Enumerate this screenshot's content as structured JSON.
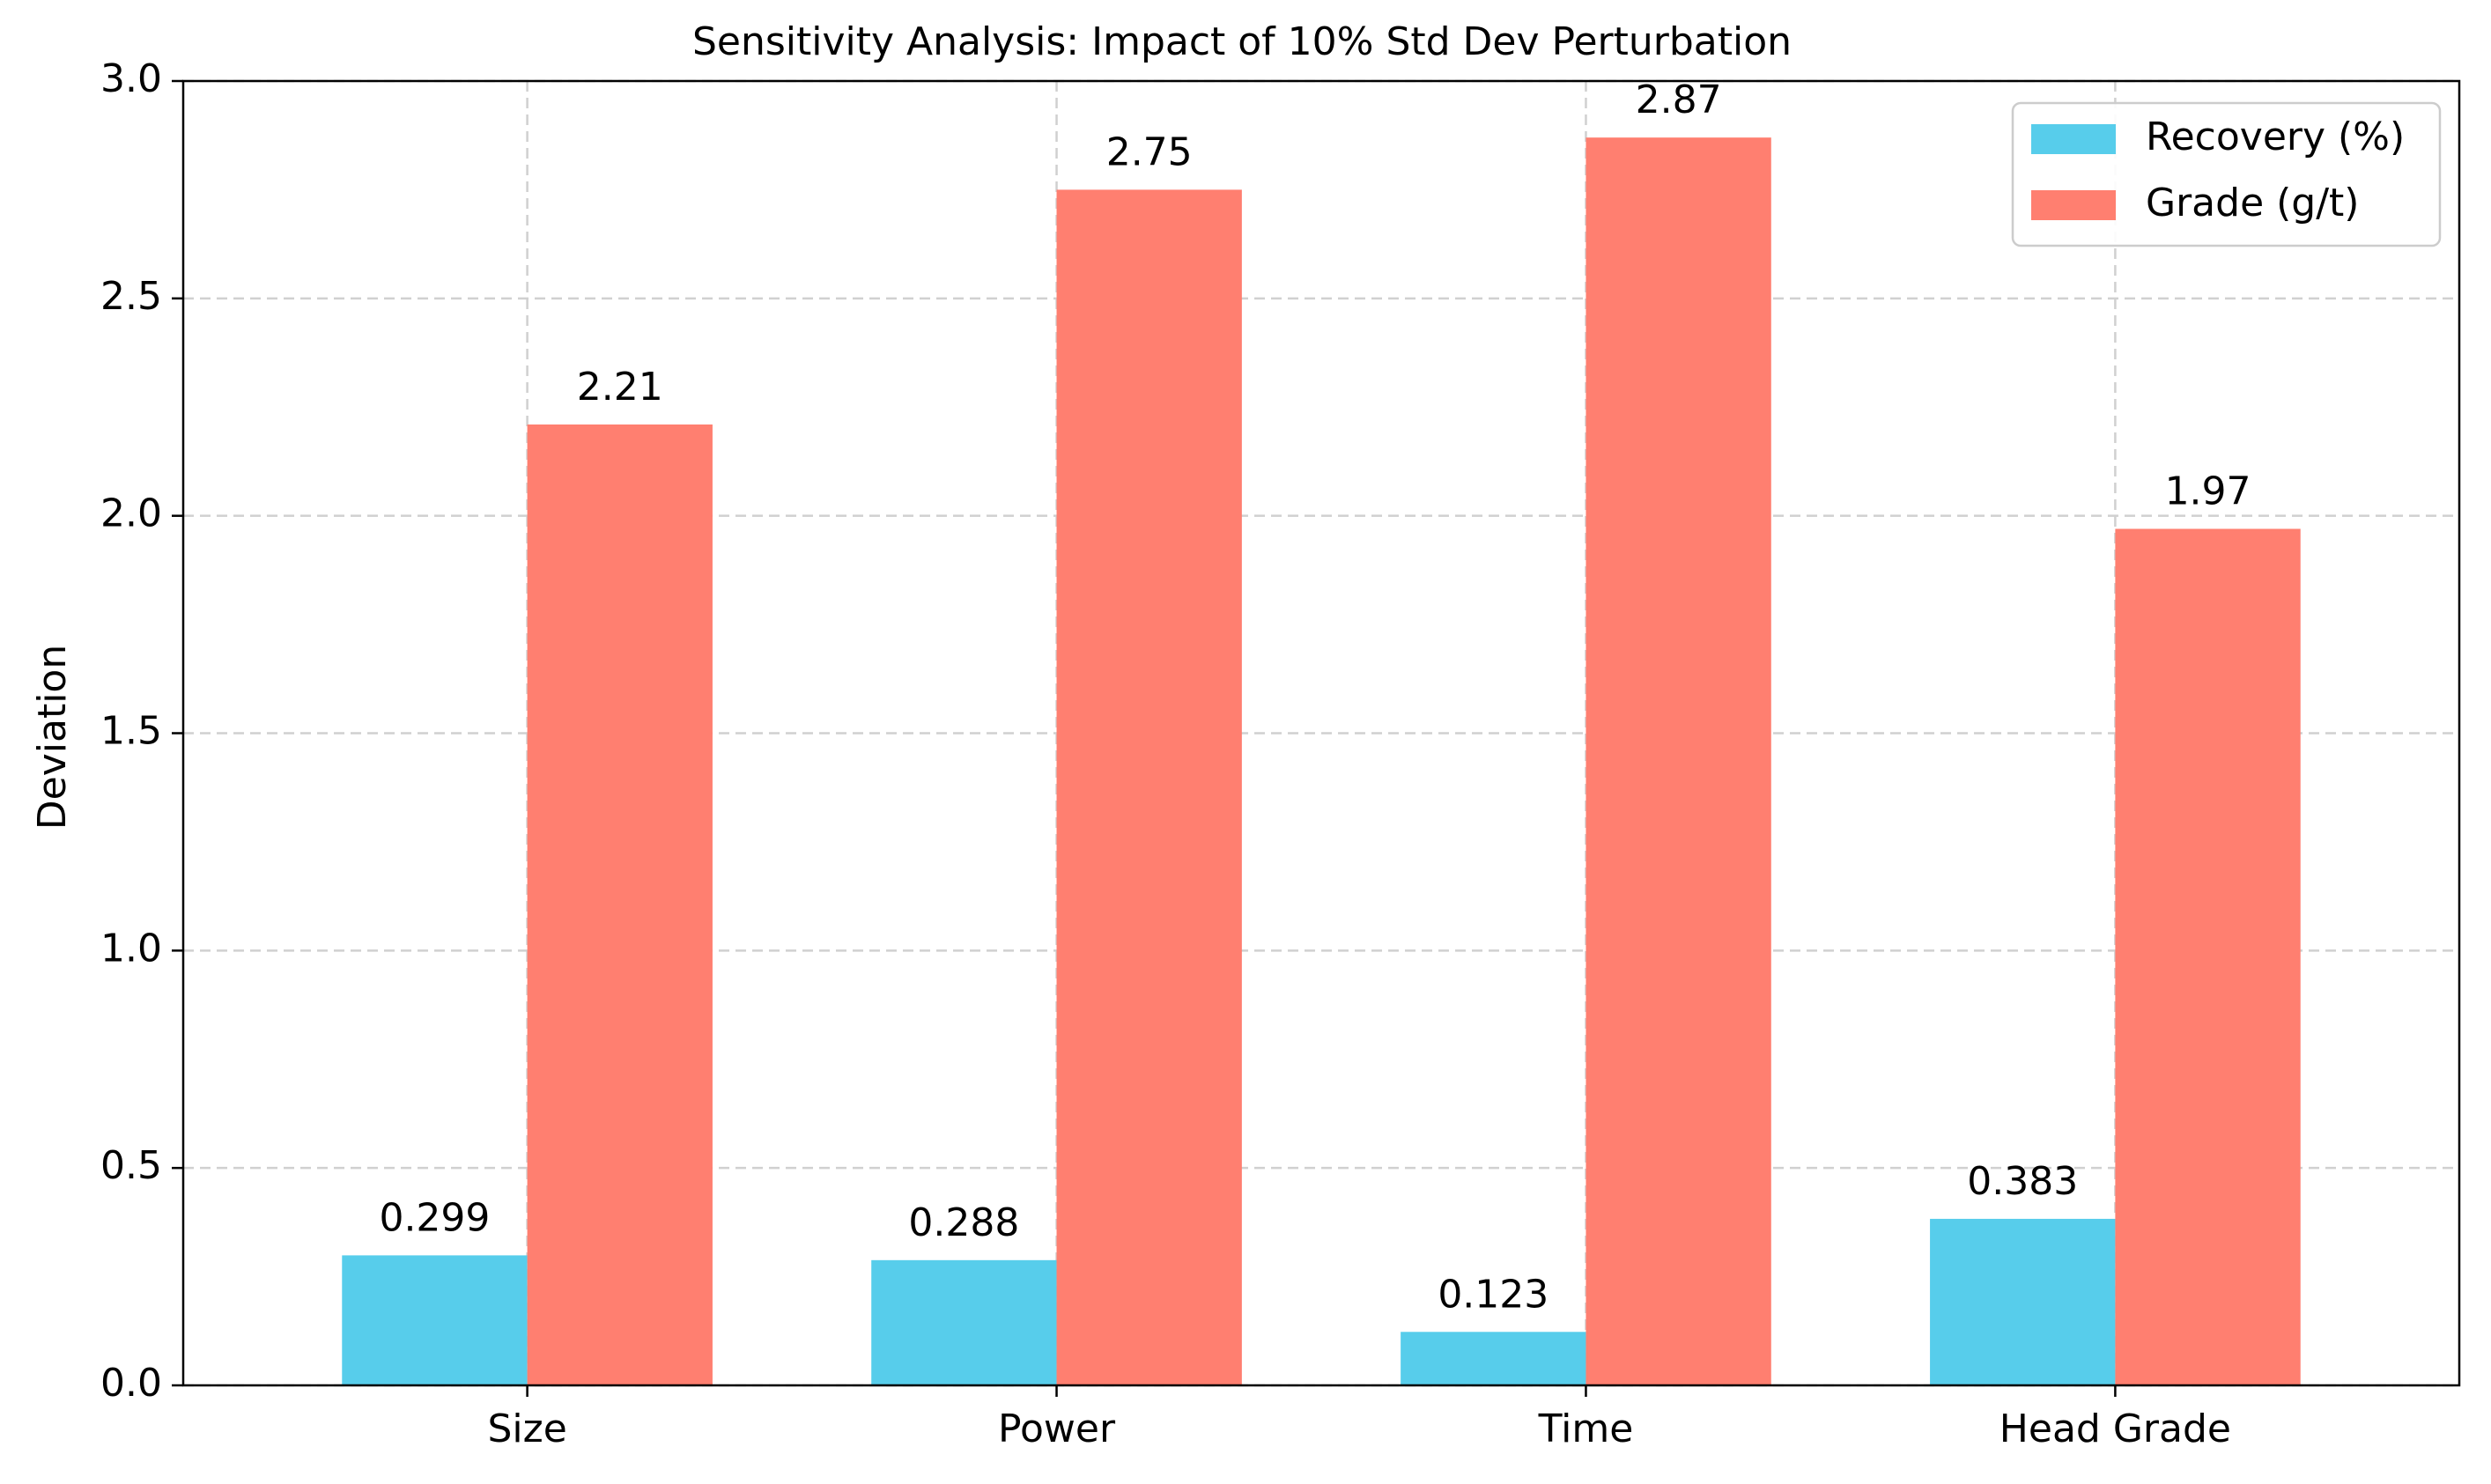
{
  "chart_data": {
    "type": "bar",
    "title": "Sensitivity Analysis: Impact of 10% Std Dev Perturbation",
    "xlabel": "",
    "ylabel": "Deviation",
    "categories": [
      "Size",
      "Power",
      "Time",
      "Head Grade"
    ],
    "series": [
      {
        "name": "Recovery (%)",
        "color": "#57CDEB",
        "values": [
          0.299,
          0.288,
          0.123,
          0.383
        ],
        "labels": [
          "0.299",
          "0.288",
          "0.123",
          "0.383"
        ]
      },
      {
        "name": "Grade (g/t)",
        "color": "#FF7F70",
        "values": [
          2.21,
          2.75,
          2.87,
          1.97
        ],
        "labels": [
          "2.21",
          "2.75",
          "2.87",
          "1.97"
        ]
      }
    ],
    "ylim": [
      0,
      3.0
    ],
    "yticks": [
      0.0,
      0.5,
      1.0,
      1.5,
      2.0,
      2.5,
      3.0
    ],
    "ytick_labels": [
      "0.0",
      "0.5",
      "1.0",
      "1.5",
      "2.0",
      "2.5",
      "3.0"
    ],
    "grid": true,
    "legend_position": "top-right"
  }
}
